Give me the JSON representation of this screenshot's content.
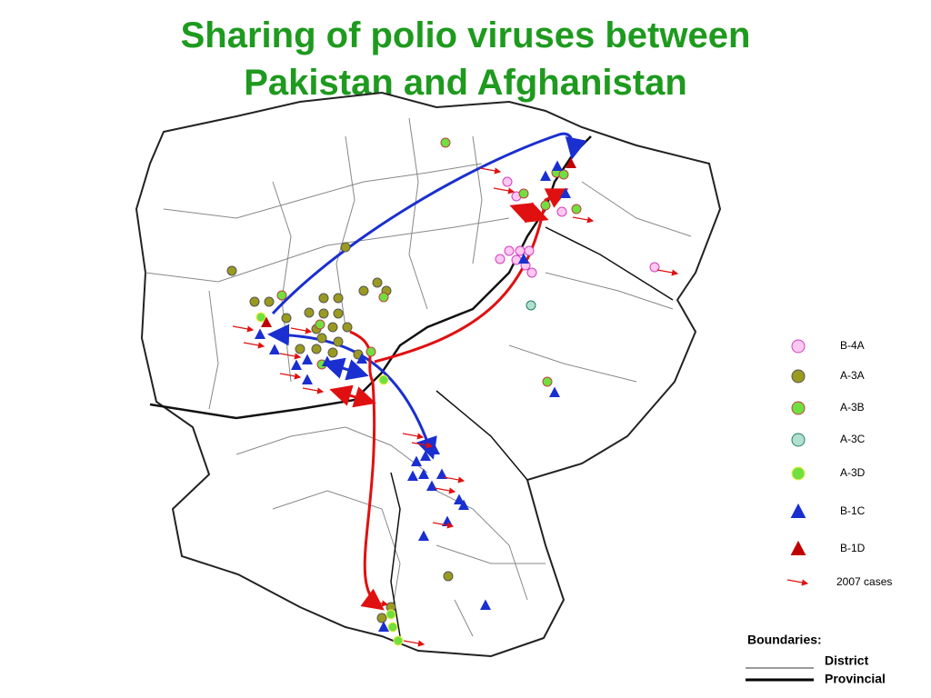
{
  "title_lines": [
    "Sharing of polio viruses between",
    "Pakistan and Afghanistan"
  ],
  "legend": {
    "items": [
      "B-4A",
      "A-3A",
      "A-3B",
      "A-3C",
      "A-3D",
      "B-1C",
      "B-1D",
      "2007 cases"
    ]
  },
  "boundaries": {
    "title": "Boundaries:",
    "items": [
      "District",
      "Provincial"
    ]
  }
}
